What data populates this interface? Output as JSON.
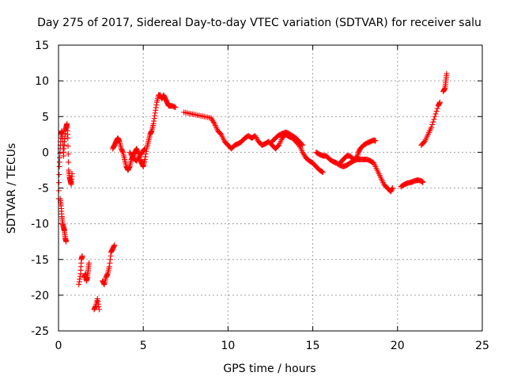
{
  "chart_data": {
    "type": "scatter",
    "title": "Day 275 of 2017, Sidereal Day-to-day VTEC variation (SDTVAR) for receiver salu",
    "xlabel": "GPS time / hours",
    "ylabel": "SDTVAR / TECUs",
    "xlim": [
      0,
      25
    ],
    "ylim": [
      -25,
      15
    ],
    "x_ticks": [
      0,
      5,
      10,
      15,
      20,
      25
    ],
    "y_ticks": [
      -25,
      -20,
      -15,
      -10,
      -5,
      0,
      5,
      10,
      15
    ],
    "grid": true,
    "marker": "+",
    "series": [
      {
        "name": "SDTVAR",
        "color": "#ff0000",
        "segments": [
          [
            [
              0.0,
              -6.5
            ],
            [
              0.05,
              -2.0
            ],
            [
              0.1,
              0.5
            ],
            [
              0.15,
              2.5
            ],
            [
              0.2,
              3.0
            ],
            [
              0.25,
              1.5
            ],
            [
              0.3,
              -0.5
            ],
            [
              0.35,
              1.5
            ],
            [
              0.4,
              3.0
            ],
            [
              0.45,
              3.5
            ],
            [
              0.5,
              4.0
            ],
            [
              0.55,
              2.0
            ],
            [
              0.6,
              -2.5
            ],
            [
              0.65,
              -3.5
            ],
            [
              0.7,
              -4.0
            ],
            [
              0.75,
              -4.5
            ],
            [
              0.8,
              -3.0
            ]
          ],
          [
            [
              0.1,
              -6.5
            ],
            [
              0.15,
              -7.5
            ],
            [
              0.2,
              -9.0
            ],
            [
              0.25,
              -10.0
            ],
            [
              0.3,
              -10.5
            ],
            [
              0.35,
              -11.0
            ],
            [
              0.4,
              -12.0
            ],
            [
              0.45,
              -12.5
            ]
          ],
          [
            [
              1.2,
              -18.5
            ],
            [
              1.3,
              -17.0
            ],
            [
              1.35,
              -15.0
            ],
            [
              1.4,
              -14.5
            ]
          ],
          [
            [
              1.5,
              -17.5
            ],
            [
              1.6,
              -17.0
            ],
            [
              1.65,
              -18.0
            ],
            [
              1.7,
              -17.5
            ],
            [
              1.75,
              -16.5
            ],
            [
              1.8,
              -15.5
            ]
          ],
          [
            [
              2.1,
              -22.0
            ],
            [
              2.2,
              -21.5
            ],
            [
              2.3,
              -20.5
            ],
            [
              2.4,
              -22.0
            ]
          ],
          [
            [
              2.6,
              -18.0
            ],
            [
              2.7,
              -18.5
            ],
            [
              2.8,
              -17.5
            ],
            [
              2.9,
              -17.0
            ],
            [
              3.0,
              -16.0
            ],
            [
              3.1,
              -14.0
            ],
            [
              3.2,
              -13.5
            ],
            [
              3.3,
              -13.0
            ]
          ],
          [
            [
              3.2,
              0.5
            ],
            [
              3.3,
              1.0
            ],
            [
              3.4,
              1.5
            ],
            [
              3.5,
              2.0
            ],
            [
              3.6,
              1.5
            ],
            [
              3.7,
              0.5
            ],
            [
              3.8,
              0.0
            ],
            [
              3.9,
              -1.0
            ],
            [
              4.0,
              -2.0
            ],
            [
              4.1,
              -2.5
            ],
            [
              4.2,
              -2.0
            ],
            [
              4.3,
              -1.0
            ],
            [
              4.4,
              -0.5
            ],
            [
              4.5,
              0.0
            ],
            [
              4.6,
              0.5
            ],
            [
              4.7,
              0.0
            ],
            [
              4.8,
              -1.0
            ],
            [
              4.9,
              -1.5
            ],
            [
              5.0,
              -2.0
            ],
            [
              5.1,
              -1.0
            ],
            [
              5.2,
              0.5
            ],
            [
              5.3,
              1.5
            ],
            [
              5.4,
              2.5
            ],
            [
              5.5,
              3.0
            ],
            [
              5.6,
              4.0
            ],
            [
              5.7,
              5.5
            ],
            [
              5.8,
              7.0
            ],
            [
              5.9,
              8.0
            ],
            [
              6.0,
              8.0
            ],
            [
              6.1,
              7.5
            ],
            [
              6.2,
              8.0
            ],
            [
              6.3,
              7.5
            ],
            [
              6.4,
              7.0
            ],
            [
              6.5,
              6.5
            ],
            [
              6.7,
              6.5
            ],
            [
              6.9,
              6.3
            ]
          ],
          [
            [
              4.2,
              0.0
            ],
            [
              4.4,
              -0.8
            ],
            [
              4.6,
              -1.2
            ],
            [
              4.8,
              -0.5
            ],
            [
              5.0,
              0.2
            ],
            [
              5.1,
              0.5
            ]
          ],
          [
            [
              7.4,
              5.6
            ],
            [
              7.8,
              5.4
            ],
            [
              8.2,
              5.2
            ],
            [
              8.6,
              5.0
            ],
            [
              9.0,
              4.8
            ],
            [
              9.2,
              4.0
            ],
            [
              9.4,
              3.0
            ],
            [
              9.6,
              2.5
            ],
            [
              9.8,
              1.5
            ],
            [
              10.0,
              1.0
            ],
            [
              10.2,
              0.5
            ],
            [
              10.4,
              1.0
            ],
            [
              10.6,
              1.2
            ],
            [
              10.8,
              1.5
            ],
            [
              11.0,
              2.0
            ],
            [
              11.2,
              2.3
            ],
            [
              11.4,
              2.0
            ],
            [
              11.6,
              2.3
            ],
            [
              11.8,
              1.5
            ],
            [
              12.0,
              1.0
            ],
            [
              12.2,
              1.2
            ],
            [
              12.4,
              1.5
            ],
            [
              12.6,
              1.0
            ],
            [
              12.8,
              0.5
            ],
            [
              13.0,
              1.0
            ],
            [
              13.2,
              2.0
            ],
            [
              13.4,
              2.5
            ],
            [
              13.6,
              2.2
            ],
            [
              13.8,
              2.0
            ],
            [
              14.0,
              1.5
            ],
            [
              14.2,
              1.0
            ],
            [
              14.4,
              0.0
            ],
            [
              14.6,
              -0.8
            ],
            [
              14.8,
              -1.2
            ],
            [
              15.0,
              -1.5
            ],
            [
              15.2,
              -2.0
            ],
            [
              15.4,
              -2.5
            ],
            [
              15.6,
              -2.8
            ]
          ],
          [
            [
              12.6,
              1.5
            ],
            [
              12.8,
              2.0
            ],
            [
              13.0,
              2.4
            ],
            [
              13.2,
              2.6
            ],
            [
              13.4,
              2.8
            ],
            [
              13.6,
              2.6
            ],
            [
              13.8,
              2.3
            ],
            [
              14.0,
              2.0
            ],
            [
              14.2,
              1.5
            ],
            [
              14.4,
              1.0
            ]
          ],
          [
            [
              15.2,
              0.0
            ],
            [
              15.4,
              -0.3
            ],
            [
              15.6,
              -0.5
            ],
            [
              15.8,
              -0.5
            ],
            [
              16.0,
              -1.0
            ],
            [
              16.2,
              -1.3
            ],
            [
              16.4,
              -1.5
            ],
            [
              16.6,
              -1.8
            ],
            [
              16.8,
              -2.0
            ],
            [
              17.0,
              -1.8
            ],
            [
              17.2,
              -1.5
            ],
            [
              17.4,
              -1.2
            ],
            [
              17.6,
              -1.0
            ],
            [
              17.8,
              -1.0
            ],
            [
              18.0,
              -1.0
            ],
            [
              18.2,
              -1.0
            ],
            [
              18.4,
              -1.2
            ],
            [
              18.6,
              -1.5
            ],
            [
              18.8,
              -2.5
            ],
            [
              19.0,
              -3.5
            ],
            [
              19.2,
              -4.5
            ],
            [
              19.4,
              -5.0
            ],
            [
              19.6,
              -5.5
            ],
            [
              19.7,
              -5.0
            ]
          ],
          [
            [
              16.6,
              -1.5
            ],
            [
              16.8,
              -1.0
            ],
            [
              17.0,
              -0.5
            ],
            [
              17.2,
              -0.5
            ],
            [
              17.4,
              -1.0
            ],
            [
              17.6,
              -0.8
            ],
            [
              17.7,
              0.0
            ],
            [
              17.8,
              0.5
            ],
            [
              18.0,
              1.0
            ],
            [
              18.2,
              1.3
            ],
            [
              18.4,
              1.5
            ],
            [
              18.6,
              1.7
            ],
            [
              18.7,
              1.6
            ]
          ],
          [
            [
              20.2,
              -4.8
            ],
            [
              20.4,
              -4.5
            ],
            [
              20.6,
              -4.3
            ],
            [
              20.8,
              -4.2
            ],
            [
              21.0,
              -4.0
            ],
            [
              21.2,
              -3.9
            ],
            [
              21.4,
              -4.0
            ],
            [
              21.5,
              -4.2
            ]
          ],
          [
            [
              21.4,
              1.0
            ],
            [
              21.6,
              1.5
            ],
            [
              21.8,
              2.5
            ],
            [
              22.0,
              3.5
            ],
            [
              22.2,
              5.0
            ],
            [
              22.4,
              6.5
            ],
            [
              22.5,
              7.0
            ]
          ],
          [
            [
              22.7,
              8.5
            ],
            [
              22.8,
              9.0
            ],
            [
              22.85,
              10.0
            ],
            [
              22.9,
              11.0
            ]
          ]
        ]
      }
    ]
  }
}
